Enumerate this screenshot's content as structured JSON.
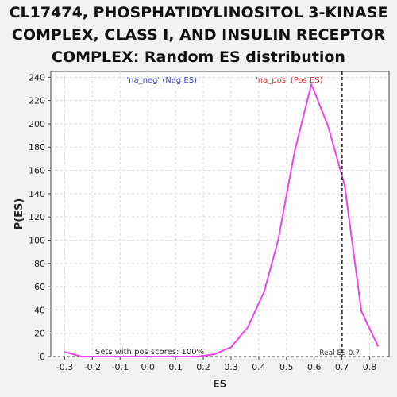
{
  "chart_data": {
    "type": "line",
    "title_lines": [
      "CL17474, PHOSPHATIDYLINOSITOL 3-KINASE",
      "COMPLEX, CLASS I, AND INSULIN RECEPTOR",
      "COMPLEX: Random ES distribution"
    ],
    "xlabel": "ES",
    "ylabel": "P(ES)",
    "xlim": [
      -0.35,
      0.87
    ],
    "ylim": [
      0,
      245
    ],
    "x_ticks": [
      -0.3,
      -0.2,
      -0.1,
      0.0,
      0.1,
      0.2,
      0.3,
      0.4,
      0.5,
      0.6,
      0.7,
      0.8
    ],
    "x_tick_labels": [
      "-0.3",
      "-0.2",
      "-0.1",
      "0.0",
      "0.1",
      "0.2",
      "0.3",
      "0.4",
      "0.5",
      "0.6",
      "0.7",
      "0.8"
    ],
    "y_ticks": [
      0,
      20,
      40,
      60,
      80,
      100,
      120,
      140,
      160,
      180,
      200,
      220,
      240
    ],
    "y_tick_labels": [
      "0",
      "20",
      "40",
      "60",
      "80",
      "100",
      "120",
      "140",
      "160",
      "180",
      "200",
      "220",
      "240"
    ],
    "grid": true,
    "series": [
      {
        "color": "#ee44ee",
        "x": [
          -0.3,
          -0.24,
          -0.18,
          -0.12,
          -0.06,
          0.0,
          0.06,
          0.12,
          0.18,
          0.24,
          0.3,
          0.36,
          0.42,
          0.47,
          0.53,
          0.59,
          0.65,
          0.71,
          0.77,
          0.83
        ],
        "y": [
          4,
          0,
          0,
          0,
          0,
          0,
          0,
          0,
          0,
          2,
          8,
          25,
          56,
          100,
          177,
          234,
          198,
          147,
          39,
          9
        ]
      }
    ],
    "real_es": {
      "value": 0.7,
      "label": "Real ES 0.7",
      "color": "#333333"
    },
    "annotations": {
      "neg_label": "'na_neg' (Neg ES)",
      "neg_color": "#4444cc",
      "pos_label": "'na_pos' (Pos ES)",
      "pos_color": "#dd3333",
      "sets_label": "Sets with pos scores: 100%"
    }
  }
}
